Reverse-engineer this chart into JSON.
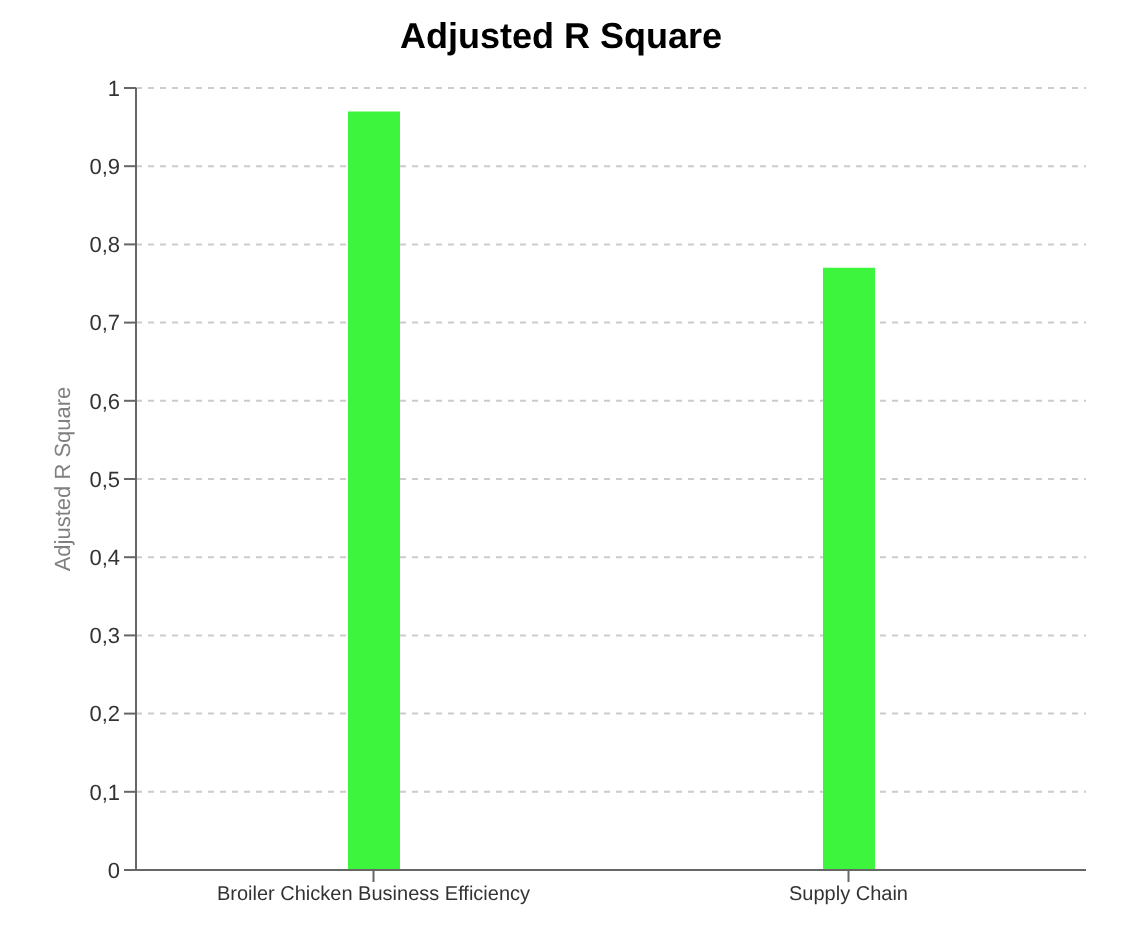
{
  "chart_data": {
    "type": "bar",
    "title": "Adjusted R Square",
    "ylabel": "Adjusted R Square",
    "categories": [
      "Broiler Chicken Business Efficiency",
      "Supply Chain"
    ],
    "values": [
      0.97,
      0.77
    ],
    "color": "#3df53d",
    "ylim": [
      0,
      1
    ],
    "yticks": [
      0,
      {
        "value": 0.1,
        "label": "0,1"
      },
      {
        "value": 0.2,
        "label": "0,2"
      },
      {
        "value": 0.3,
        "label": "0,3"
      },
      {
        "value": 0.4,
        "label": "0,4"
      },
      {
        "value": 0.5,
        "label": "0,5"
      },
      {
        "value": 0.6,
        "label": "0,6"
      },
      {
        "value": 0.7,
        "label": "0,7"
      },
      {
        "value": 0.8,
        "label": "0,8"
      },
      {
        "value": 0.9,
        "label": "0,9"
      },
      1
    ],
    "grid": "y"
  }
}
